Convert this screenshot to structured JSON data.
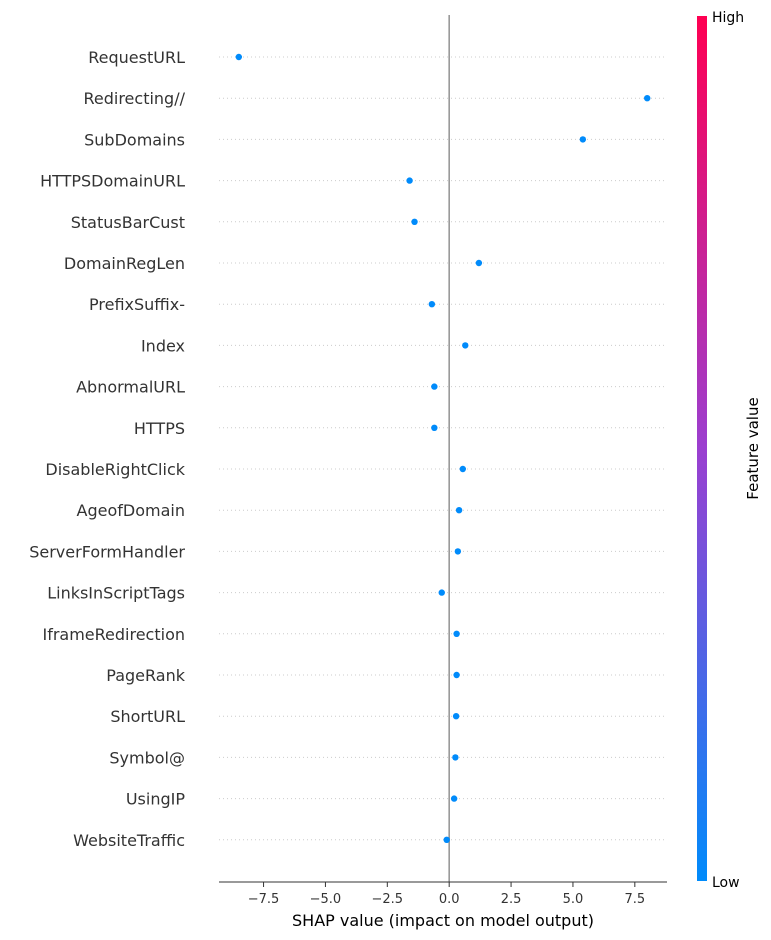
{
  "chart_data": {
    "type": "scatter",
    "title": "",
    "xlabel": "SHAP value (impact on model output)",
    "ylabel": "",
    "xlim": [
      -9.3,
      8.8
    ],
    "xticks": [
      -7.5,
      -5.0,
      -2.5,
      0.0,
      2.5,
      5.0,
      7.5
    ],
    "xtick_labels": [
      "−7.5",
      "−5.0",
      "−2.5",
      "0.0",
      "2.5",
      "5.0",
      "7.5"
    ],
    "features": [
      {
        "name": "RequestURL",
        "shap": -8.5
      },
      {
        "name": "Redirecting//",
        "shap": 8.0
      },
      {
        "name": "SubDomains",
        "shap": 5.4
      },
      {
        "name": "HTTPSDomainURL",
        "shap": -1.6
      },
      {
        "name": "StatusBarCust",
        "shap": -1.4
      },
      {
        "name": "DomainRegLen",
        "shap": 1.2
      },
      {
        "name": "PrefixSuffix-",
        "shap": -0.7
      },
      {
        "name": "Index",
        "shap": 0.65
      },
      {
        "name": "AbnormalURL",
        "shap": -0.6
      },
      {
        "name": "HTTPS",
        "shap": -0.6
      },
      {
        "name": "DisableRightClick",
        "shap": 0.55
      },
      {
        "name": "AgeofDomain",
        "shap": 0.4
      },
      {
        "name": "ServerFormHandler",
        "shap": 0.35
      },
      {
        "name": "LinksInScriptTags",
        "shap": -0.3
      },
      {
        "name": "IframeRedirection",
        "shap": 0.3
      },
      {
        "name": "PageRank",
        "shap": 0.3
      },
      {
        "name": "ShortURL",
        "shap": 0.28
      },
      {
        "name": "Symbol@",
        "shap": 0.25
      },
      {
        "name": "UsingIP",
        "shap": 0.2
      },
      {
        "name": "WebsiteTraffic",
        "shap": -0.1
      }
    ],
    "colorbar": {
      "title": "Feature value",
      "high_label": "High",
      "low_label": "Low",
      "high_color": "#ff0052",
      "low_color": "#008bfb"
    },
    "point_color": "#008bfb",
    "grid": false
  }
}
